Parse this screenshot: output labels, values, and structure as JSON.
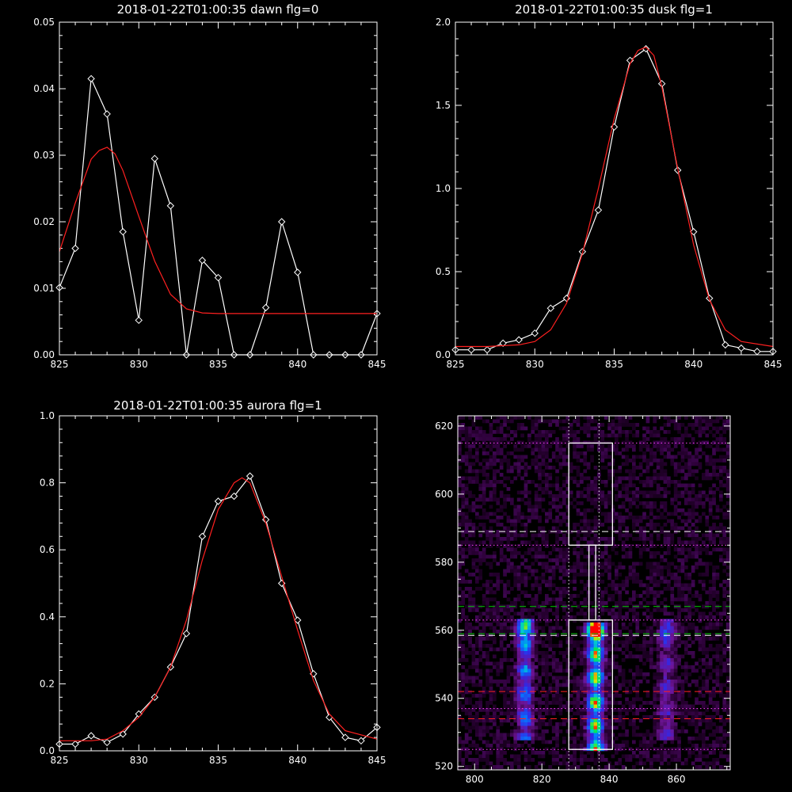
{
  "chart_data": [
    {
      "type": "line",
      "title": "2018-01-22T01:00:35 dawn flg=0",
      "xlim": [
        825,
        845
      ],
      "ylim": [
        0,
        0.05
      ],
      "xticks": [
        "825",
        "830",
        "835",
        "840",
        "845"
      ],
      "yticks": [
        "0.00",
        "0.01",
        "0.02",
        "0.03",
        "0.04",
        "0.05"
      ],
      "series": [
        {
          "kind": "data",
          "color": "#ffffff",
          "marker": "diamond",
          "x": [
            825,
            826,
            827,
            828,
            829,
            830,
            831,
            832,
            833,
            834,
            835,
            836,
            837,
            838,
            839,
            840,
            841,
            842,
            843,
            844,
            845
          ],
          "y": [
            0.0101,
            0.016,
            0.0415,
            0.0362,
            0.0185,
            0.0052,
            0.0295,
            0.0224,
            0.0,
            0.0142,
            0.0116,
            0.0,
            0.0,
            0.0071,
            0.02,
            0.0124,
            0.0,
            0.0,
            0.0,
            0.0,
            0.0062
          ]
        },
        {
          "kind": "fit",
          "color": "#ff2020",
          "x": [
            825,
            826,
            827,
            827.5,
            828,
            828.5,
            829,
            830,
            831,
            832,
            833,
            834,
            835,
            845
          ],
          "y": [
            0.0155,
            0.0228,
            0.0294,
            0.0307,
            0.0312,
            0.0302,
            0.0277,
            0.0208,
            0.0141,
            0.0091,
            0.0069,
            0.0063,
            0.0062,
            0.0062
          ]
        }
      ]
    },
    {
      "type": "line",
      "title": "2018-01-22T01:00:35 dusk flg=1",
      "xlim": [
        825,
        845
      ],
      "ylim": [
        0,
        2.0
      ],
      "xticks": [
        "825",
        "830",
        "835",
        "840",
        "845"
      ],
      "yticks": [
        "0.0",
        "0.5",
        "1.0",
        "1.5",
        "2.0"
      ],
      "series": [
        {
          "kind": "data",
          "color": "#ffffff",
          "marker": "diamond",
          "x": [
            825,
            826,
            827,
            828,
            829,
            830,
            831,
            832,
            833,
            834,
            835,
            836,
            837,
            838,
            839,
            840,
            841,
            842,
            843,
            844,
            845
          ],
          "y": [
            0.03,
            0.03,
            0.03,
            0.07,
            0.09,
            0.13,
            0.28,
            0.34,
            0.62,
            0.87,
            1.37,
            1.77,
            1.84,
            1.63,
            1.11,
            0.74,
            0.34,
            0.06,
            0.04,
            0.02,
            0.02
          ]
        },
        {
          "kind": "fit",
          "color": "#ff2020",
          "x": [
            825,
            827,
            829,
            830,
            831,
            832,
            833,
            834,
            835,
            836,
            836.5,
            837,
            837.5,
            838,
            839,
            840,
            841,
            842,
            843,
            845
          ],
          "y": [
            0.05,
            0.05,
            0.06,
            0.08,
            0.15,
            0.31,
            0.61,
            1.0,
            1.42,
            1.75,
            1.83,
            1.85,
            1.8,
            1.61,
            1.12,
            0.66,
            0.33,
            0.15,
            0.08,
            0.05
          ]
        }
      ]
    },
    {
      "type": "line",
      "title": "2018-01-22T01:00:35 aurora flg=1",
      "xlim": [
        825,
        845
      ],
      "ylim": [
        0,
        1.0
      ],
      "xticks": [
        "825",
        "830",
        "835",
        "840",
        "845"
      ],
      "yticks": [
        "0.0",
        "0.2",
        "0.4",
        "0.6",
        "0.8",
        "1.0"
      ],
      "series": [
        {
          "kind": "data",
          "color": "#ffffff",
          "marker": "diamond",
          "x": [
            825,
            826,
            827,
            828,
            829,
            830,
            831,
            832,
            833,
            834,
            835,
            836,
            837,
            838,
            839,
            840,
            841,
            842,
            843,
            844,
            845
          ],
          "y": [
            0.02,
            0.02,
            0.045,
            0.025,
            0.05,
            0.11,
            0.16,
            0.25,
            0.35,
            0.64,
            0.745,
            0.76,
            0.82,
            0.69,
            0.5,
            0.39,
            0.23,
            0.1,
            0.04,
            0.03,
            0.07
          ]
        },
        {
          "kind": "fit",
          "color": "#ff2020",
          "x": [
            825,
            827,
            828,
            829,
            830,
            831,
            832,
            833,
            834,
            835,
            836,
            836.5,
            837,
            838,
            839,
            840,
            841,
            842,
            843,
            845
          ],
          "y": [
            0.03,
            0.03,
            0.035,
            0.06,
            0.1,
            0.16,
            0.25,
            0.39,
            0.57,
            0.72,
            0.8,
            0.815,
            0.8,
            0.68,
            0.52,
            0.36,
            0.21,
            0.11,
            0.06,
            0.035
          ]
        }
      ]
    },
    {
      "type": "heatmap",
      "xlim": [
        795,
        876
      ],
      "ylim": [
        519,
        623
      ],
      "xticks": [
        "800",
        "820",
        "840",
        "860"
      ],
      "yticks": [
        "520",
        "540",
        "560",
        "580",
        "600",
        "620"
      ],
      "colormap": "rainbow on black",
      "blobs": [
        {
          "x": 836,
          "y_from": 525,
          "y_to": 562,
          "peak_y": 560,
          "intensity": 1.0
        },
        {
          "x": 815,
          "y_from": 528,
          "y_to": 563,
          "peak_y": 560,
          "intensity": 0.55
        },
        {
          "x": 857,
          "y_from": 528,
          "y_to": 563,
          "peak_y": 560,
          "intensity": 0.3
        }
      ],
      "overlays": {
        "outline_boxes": [
          {
            "x": [
              828,
              841
            ],
            "y": [
              525,
              563
            ]
          },
          {
            "x": [
              828,
              841
            ],
            "y": [
              585,
              615
            ]
          }
        ],
        "outline_connector": {
          "x": [
            834,
            836
          ],
          "y": [
            563,
            585
          ]
        },
        "vertical_dotted_x": [
          828,
          837
        ],
        "magenta_dotted_y": [
          525,
          537,
          563,
          585,
          615
        ],
        "dashed_lines": [
          {
            "y": 534,
            "color": "#ff2020"
          },
          {
            "y": 542,
            "color": "#ff2020"
          },
          {
            "y": 558.5,
            "color": "#ffffff"
          },
          {
            "y": 559,
            "color": "#00d000"
          },
          {
            "y": 567,
            "color": "#00d000"
          },
          {
            "y": 589,
            "color": "#ffffff"
          }
        ]
      }
    }
  ]
}
